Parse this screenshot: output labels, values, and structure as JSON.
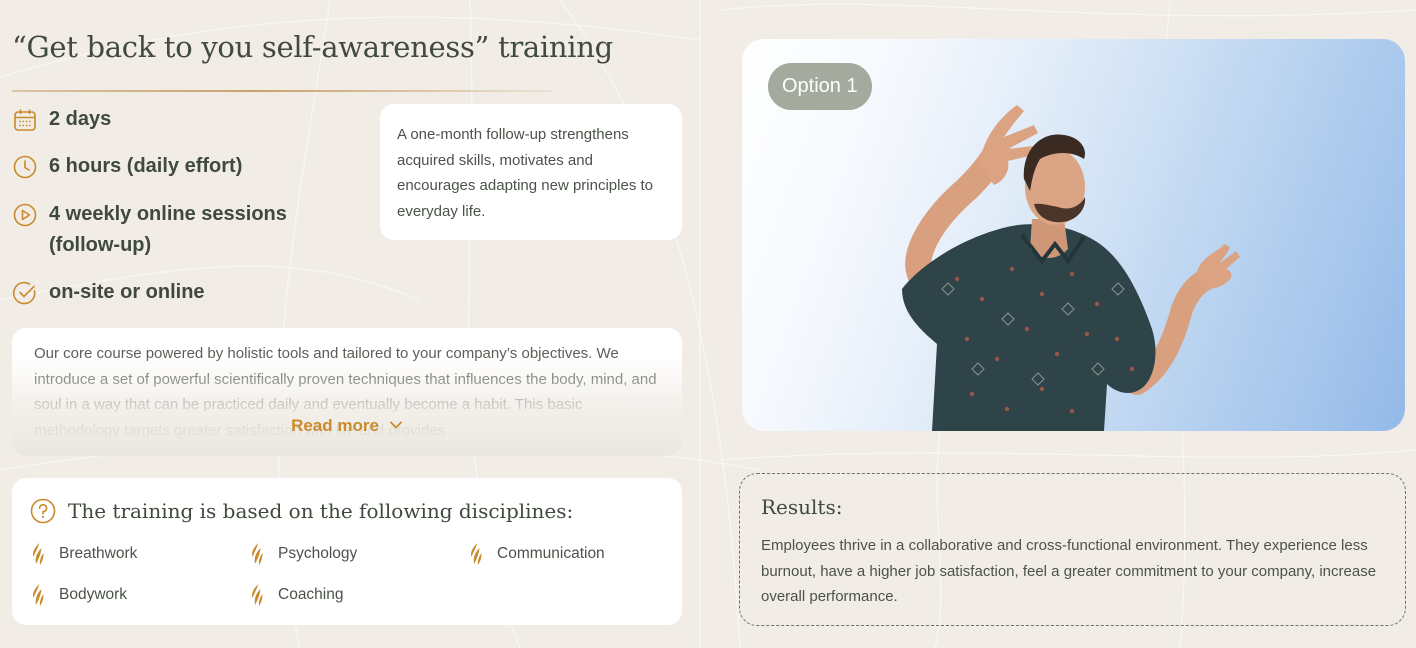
{
  "training": {
    "title": "“Get back to you self-awareness” training",
    "facts": [
      {
        "icon": "calendar-icon",
        "text": "2 days"
      },
      {
        "icon": "clock-icon",
        "text": "6 hours (daily effort)"
      },
      {
        "icon": "play-circle-icon",
        "line1": "4 weekly online sessions",
        "line2": "(follow-up)"
      },
      {
        "icon": "check-circle-icon",
        "text": "on-site or online"
      }
    ],
    "followup_text": "A one-month follow-up strengthens acquired skills, motivates and encourages adapting new principles to everyday life.",
    "course": {
      "text": "Our core course powered by holistic tools and tailored to your company’s objectives. We introduce a set of powerful scientifically proven techniques that influences the body, mind, and soul in a way that can be practiced daily and eventually become a habit. This basic methodology targets greater satisfaction with life and provides",
      "read_more": "Read more"
    },
    "disciplines": {
      "heading": "The training is based on the following disciplines:",
      "items": [
        "Breathwork",
        "Psychology",
        "Communication",
        "Bodywork",
        "Coaching"
      ]
    }
  },
  "photo": {
    "option_label": "Option 1"
  },
  "results": {
    "title": "Results:",
    "text": "Employees thrive in a collaborative and cross-functional environment. They experience less burnout, have a higher job satisfaction, feel a greater commitment to your company, increase overall performance."
  },
  "colors": {
    "accent": "#c98b2c",
    "text_dark": "#3f4a3c",
    "background": "#f1ede6",
    "pill": "#a4aa9d"
  }
}
